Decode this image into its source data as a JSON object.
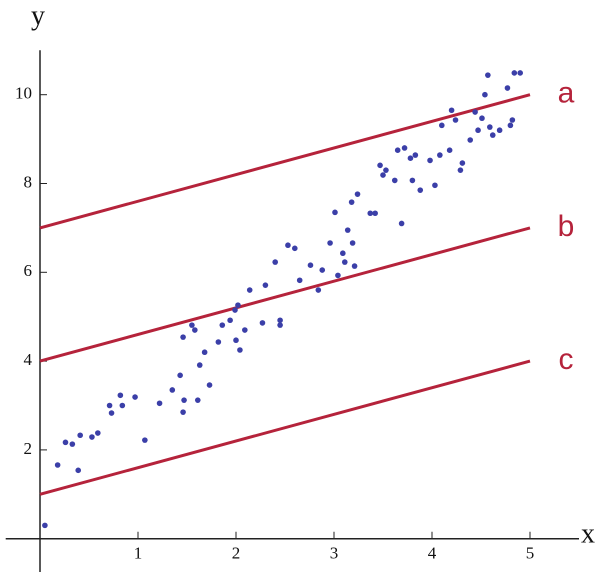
{
  "chart_data": {
    "type": "scatter",
    "x_label": "x",
    "y_label": "y",
    "xlim": [
      -0.35,
      5.5
    ],
    "ylim": [
      -0.75,
      11
    ],
    "xticks": [
      1,
      2,
      3,
      4,
      5
    ],
    "yticks": [
      2,
      4,
      6,
      8,
      10
    ],
    "points": {
      "color": "#3b3fa8",
      "x": [
        0.05,
        0.18,
        0.26,
        0.33,
        0.39,
        0.41,
        0.53,
        0.59,
        0.71,
        0.73,
        0.82,
        0.84,
        0.97,
        1.07,
        1.22,
        1.35,
        1.43,
        1.46,
        1.47,
        1.46,
        1.55,
        1.58,
        1.61,
        1.63,
        1.68,
        1.73,
        1.82,
        1.86,
        1.94,
        1.99,
        2.0,
        2.02,
        2.04,
        2.09,
        2.14,
        2.27,
        2.3,
        2.4,
        2.45,
        2.45,
        2.53,
        2.6,
        2.65,
        2.76,
        2.84,
        2.88,
        2.96,
        3.01,
        3.04,
        3.09,
        3.11,
        3.14,
        3.19,
        3.21,
        3.18,
        3.24,
        3.37,
        3.42,
        3.47,
        3.5,
        3.53,
        3.62,
        3.65,
        3.69,
        3.72,
        3.78,
        3.8,
        3.83,
        3.88,
        3.98,
        4.03,
        4.08,
        4.1,
        4.18,
        4.2,
        4.24,
        4.29,
        4.31,
        4.39,
        4.44,
        4.47,
        4.51,
        4.54,
        4.57,
        4.59,
        4.62,
        4.69,
        4.77,
        4.8,
        4.82,
        4.84,
        4.9
      ],
      "values": [
        0.3,
        1.66,
        2.17,
        2.13,
        1.54,
        2.33,
        2.29,
        2.38,
        3.0,
        2.83,
        3.23,
        3.0,
        3.19,
        2.22,
        3.05,
        3.35,
        3.68,
        2.85,
        3.12,
        4.54,
        4.81,
        4.7,
        3.12,
        3.91,
        4.2,
        3.46,
        4.43,
        4.81,
        4.92,
        5.15,
        4.47,
        5.26,
        4.25,
        4.7,
        5.6,
        4.86,
        5.71,
        6.23,
        4.92,
        4.81,
        6.61,
        6.54,
        5.82,
        6.16,
        5.6,
        6.05,
        6.66,
        7.35,
        5.93,
        6.43,
        6.23,
        6.95,
        6.66,
        6.14,
        7.58,
        7.76,
        7.33,
        7.33,
        8.41,
        8.19,
        8.3,
        8.07,
        8.75,
        7.1,
        8.8,
        8.57,
        8.07,
        8.64,
        7.85,
        8.52,
        7.96,
        8.64,
        9.31,
        8.75,
        9.65,
        9.43,
        8.3,
        8.46,
        8.98,
        9.61,
        9.2,
        9.47,
        10.0,
        10.44,
        9.27,
        9.09,
        9.2,
        10.15,
        9.31,
        9.43,
        10.49,
        10.49
      ]
    },
    "lines": [
      {
        "name": "a",
        "color": "#b5233b",
        "x": [
          0,
          5
        ],
        "values": [
          7,
          10
        ]
      },
      {
        "name": "b",
        "color": "#b5233b",
        "x": [
          0,
          5
        ],
        "values": [
          4,
          7
        ]
      },
      {
        "name": "c",
        "color": "#b5233b",
        "x": [
          0,
          5
        ],
        "values": [
          1,
          4
        ]
      }
    ]
  }
}
